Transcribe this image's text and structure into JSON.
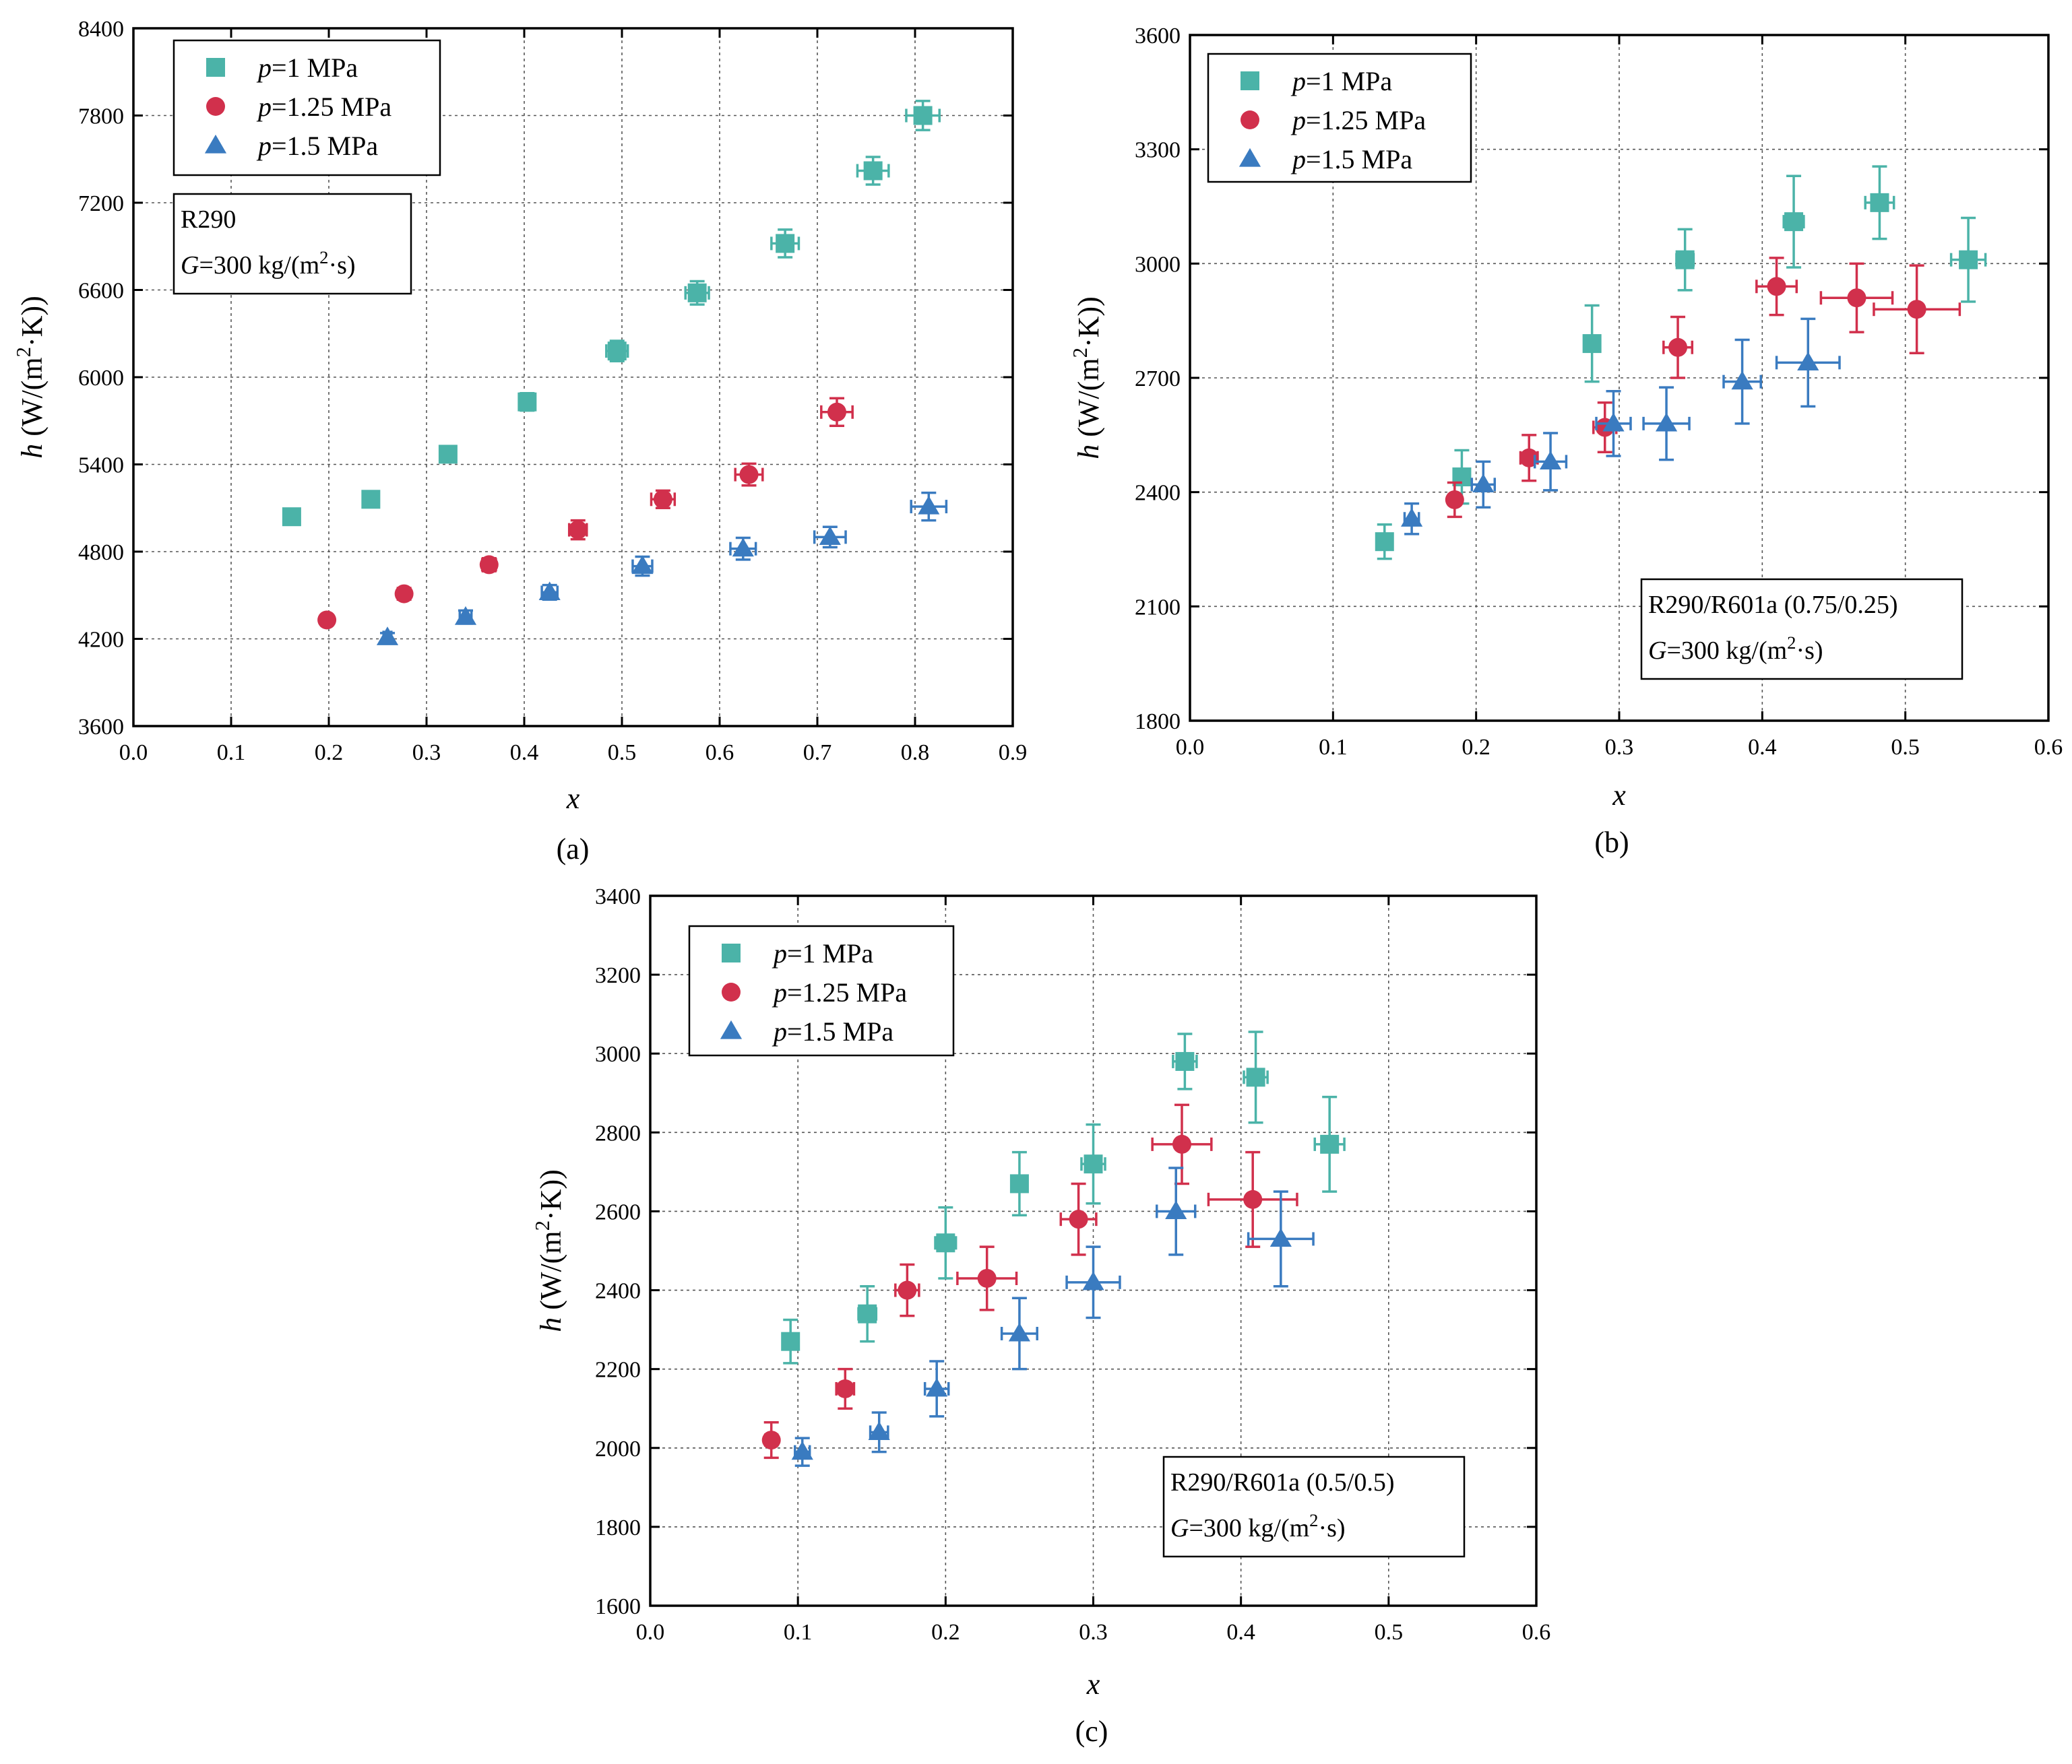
{
  "colors": {
    "p1": "#4bb3a8",
    "p125": "#d1304c",
    "p15": "#3a7bc0"
  },
  "chart_data": [
    {
      "type": "scatter",
      "caption": "(a)",
      "xlabel": "x",
      "ylabel": "h (W/(m²·K))",
      "xlim": [
        0.0,
        0.9
      ],
      "ylim": [
        3600,
        8400
      ],
      "xticks": [
        0.0,
        0.1,
        0.2,
        0.3,
        0.4,
        0.5,
        0.6,
        0.7,
        0.8,
        0.9
      ],
      "yticks": [
        3600,
        4200,
        4800,
        5400,
        6000,
        6600,
        7200,
        7800,
        8400
      ],
      "legend_position": "top-left",
      "annotation": [
        "R290",
        "G=300 kg/(m²·s)"
      ],
      "annotation_position": "upper-left",
      "series": [
        {
          "name": "p=1 MPa",
          "marker": "square",
          "color_key": "p1",
          "x": [
            0.162,
            0.243,
            0.322,
            0.403,
            0.495,
            0.577,
            0.667,
            0.757,
            0.808
          ],
          "y": [
            5040,
            5160,
            5470,
            5830,
            6180,
            6580,
            6920,
            7420,
            7800
          ],
          "xerr": [
            0.002,
            0.004,
            0.006,
            0.008,
            0.011,
            0.012,
            0.014,
            0.016,
            0.017
          ],
          "yerr": [
            25,
            30,
            45,
            60,
            70,
            80,
            95,
            95,
            100
          ]
        },
        {
          "name": "p=1.25 MPa",
          "marker": "circle",
          "color_key": "p125",
          "x": [
            0.198,
            0.277,
            0.364,
            0.455,
            0.542,
            0.63,
            0.72
          ],
          "y": [
            4330,
            4510,
            4710,
            4950,
            5160,
            5330,
            5760
          ],
          "xerr": [
            0.003,
            0.005,
            0.007,
            0.009,
            0.012,
            0.014,
            0.016
          ],
          "yerr": [
            25,
            40,
            45,
            65,
            60,
            75,
            95
          ]
        },
        {
          "name": "p=1.5 MPa",
          "marker": "triangle",
          "color_key": "p15",
          "x": [
            0.26,
            0.34,
            0.426,
            0.521,
            0.624,
            0.713,
            0.814
          ],
          "y": [
            4210,
            4350,
            4520,
            4700,
            4820,
            4900,
            5110
          ],
          "xerr": [
            0.004,
            0.006,
            0.008,
            0.01,
            0.013,
            0.016,
            0.018
          ],
          "yerr": [
            30,
            45,
            50,
            65,
            75,
            70,
            95
          ]
        }
      ]
    },
    {
      "type": "scatter",
      "caption": "(b)",
      "xlabel": "x",
      "ylabel": "h (W/(m²·K))",
      "xlim": [
        0.0,
        0.6
      ],
      "ylim": [
        1800,
        3600
      ],
      "xticks": [
        0.0,
        0.1,
        0.2,
        0.3,
        0.4,
        0.5,
        0.6
      ],
      "yticks": [
        1800,
        2100,
        2400,
        2700,
        3000,
        3300,
        3600
      ],
      "legend_position": "top-left",
      "annotation": [
        "R290/R601a (0.75/0.25)",
        "G=300 kg/(m²·s)"
      ],
      "annotation_position": "lower-right",
      "series": [
        {
          "name": "p=1 MPa",
          "marker": "square",
          "color_key": "p1",
          "x": [
            0.136,
            0.19,
            0.281,
            0.346,
            0.422,
            0.482,
            0.544
          ],
          "y": [
            2270,
            2440,
            2790,
            3010,
            3110,
            3160,
            3010
          ],
          "xerr": [
            0.004,
            0.005,
            0.004,
            0.006,
            0.007,
            0.01,
            0.012
          ],
          "yerr": [
            45,
            70,
            100,
            80,
            120,
            95,
            110
          ]
        },
        {
          "name": "p=1.25 MPa",
          "marker": "circle",
          "color_key": "p125",
          "x": [
            0.185,
            0.237,
            0.29,
            0.341,
            0.41,
            0.466,
            0.508
          ],
          "y": [
            2380,
            2490,
            2570,
            2780,
            2940,
            2910,
            2880
          ],
          "xerr": [
            0.004,
            0.006,
            0.008,
            0.01,
            0.014,
            0.025,
            0.03
          ],
          "yerr": [
            45,
            60,
            65,
            80,
            75,
            90,
            115
          ]
        },
        {
          "name": "p=1.5 MPa",
          "marker": "triangle",
          "color_key": "p15",
          "x": [
            0.155,
            0.205,
            0.252,
            0.296,
            0.333,
            0.386,
            0.432
          ],
          "y": [
            2330,
            2420,
            2480,
            2580,
            2580,
            2690,
            2740
          ],
          "xerr": [
            0.005,
            0.008,
            0.011,
            0.012,
            0.016,
            0.013,
            0.022
          ],
          "yerr": [
            40,
            60,
            75,
            85,
            95,
            110,
            115
          ]
        }
      ]
    },
    {
      "type": "scatter",
      "caption": "(c)",
      "xlabel": "x",
      "ylabel": "h (W/(m²·K))",
      "xlim": [
        0.0,
        0.6
      ],
      "ylim": [
        1600,
        3400
      ],
      "xticks": [
        0.0,
        0.1,
        0.2,
        0.3,
        0.4,
        0.5,
        0.6
      ],
      "yticks": [
        1600,
        1800,
        2000,
        2200,
        2400,
        2600,
        2800,
        3000,
        3200,
        3400
      ],
      "legend_position": "top-left",
      "annotation": [
        "R290/R601a (0.5/0.5)",
        "G=300 kg/(m²·s)"
      ],
      "annotation_position": "lower-right",
      "series": [
        {
          "name": "p=1 MPa",
          "marker": "square",
          "color_key": "p1",
          "x": [
            0.095,
            0.147,
            0.2,
            0.25,
            0.3,
            0.362,
            0.41,
            0.46
          ],
          "y": [
            2270,
            2340,
            2520,
            2670,
            2720,
            2980,
            2940,
            2770
          ],
          "xerr": [
            0.005,
            0.006,
            0.007,
            0.005,
            0.008,
            0.008,
            0.008,
            0.01
          ],
          "yerr": [
            55,
            70,
            90,
            80,
            100,
            70,
            115,
            120
          ]
        },
        {
          "name": "p=1.25 MPa",
          "marker": "circle",
          "color_key": "p125",
          "x": [
            0.082,
            0.132,
            0.174,
            0.228,
            0.29,
            0.36,
            0.408
          ],
          "y": [
            2020,
            2150,
            2400,
            2430,
            2580,
            2770,
            2630
          ],
          "xerr": [
            0.004,
            0.006,
            0.008,
            0.02,
            0.012,
            0.02,
            0.03
          ],
          "yerr": [
            45,
            50,
            65,
            80,
            90,
            100,
            120
          ]
        },
        {
          "name": "p=1.5 MPa",
          "marker": "triangle",
          "color_key": "p15",
          "x": [
            0.103,
            0.155,
            0.194,
            0.25,
            0.3,
            0.356,
            0.427
          ],
          "y": [
            1990,
            2040,
            2150,
            2290,
            2420,
            2600,
            2530
          ],
          "xerr": [
            0.005,
            0.006,
            0.008,
            0.012,
            0.018,
            0.013,
            0.022
          ],
          "yerr": [
            35,
            50,
            70,
            90,
            90,
            110,
            120
          ]
        }
      ]
    }
  ]
}
